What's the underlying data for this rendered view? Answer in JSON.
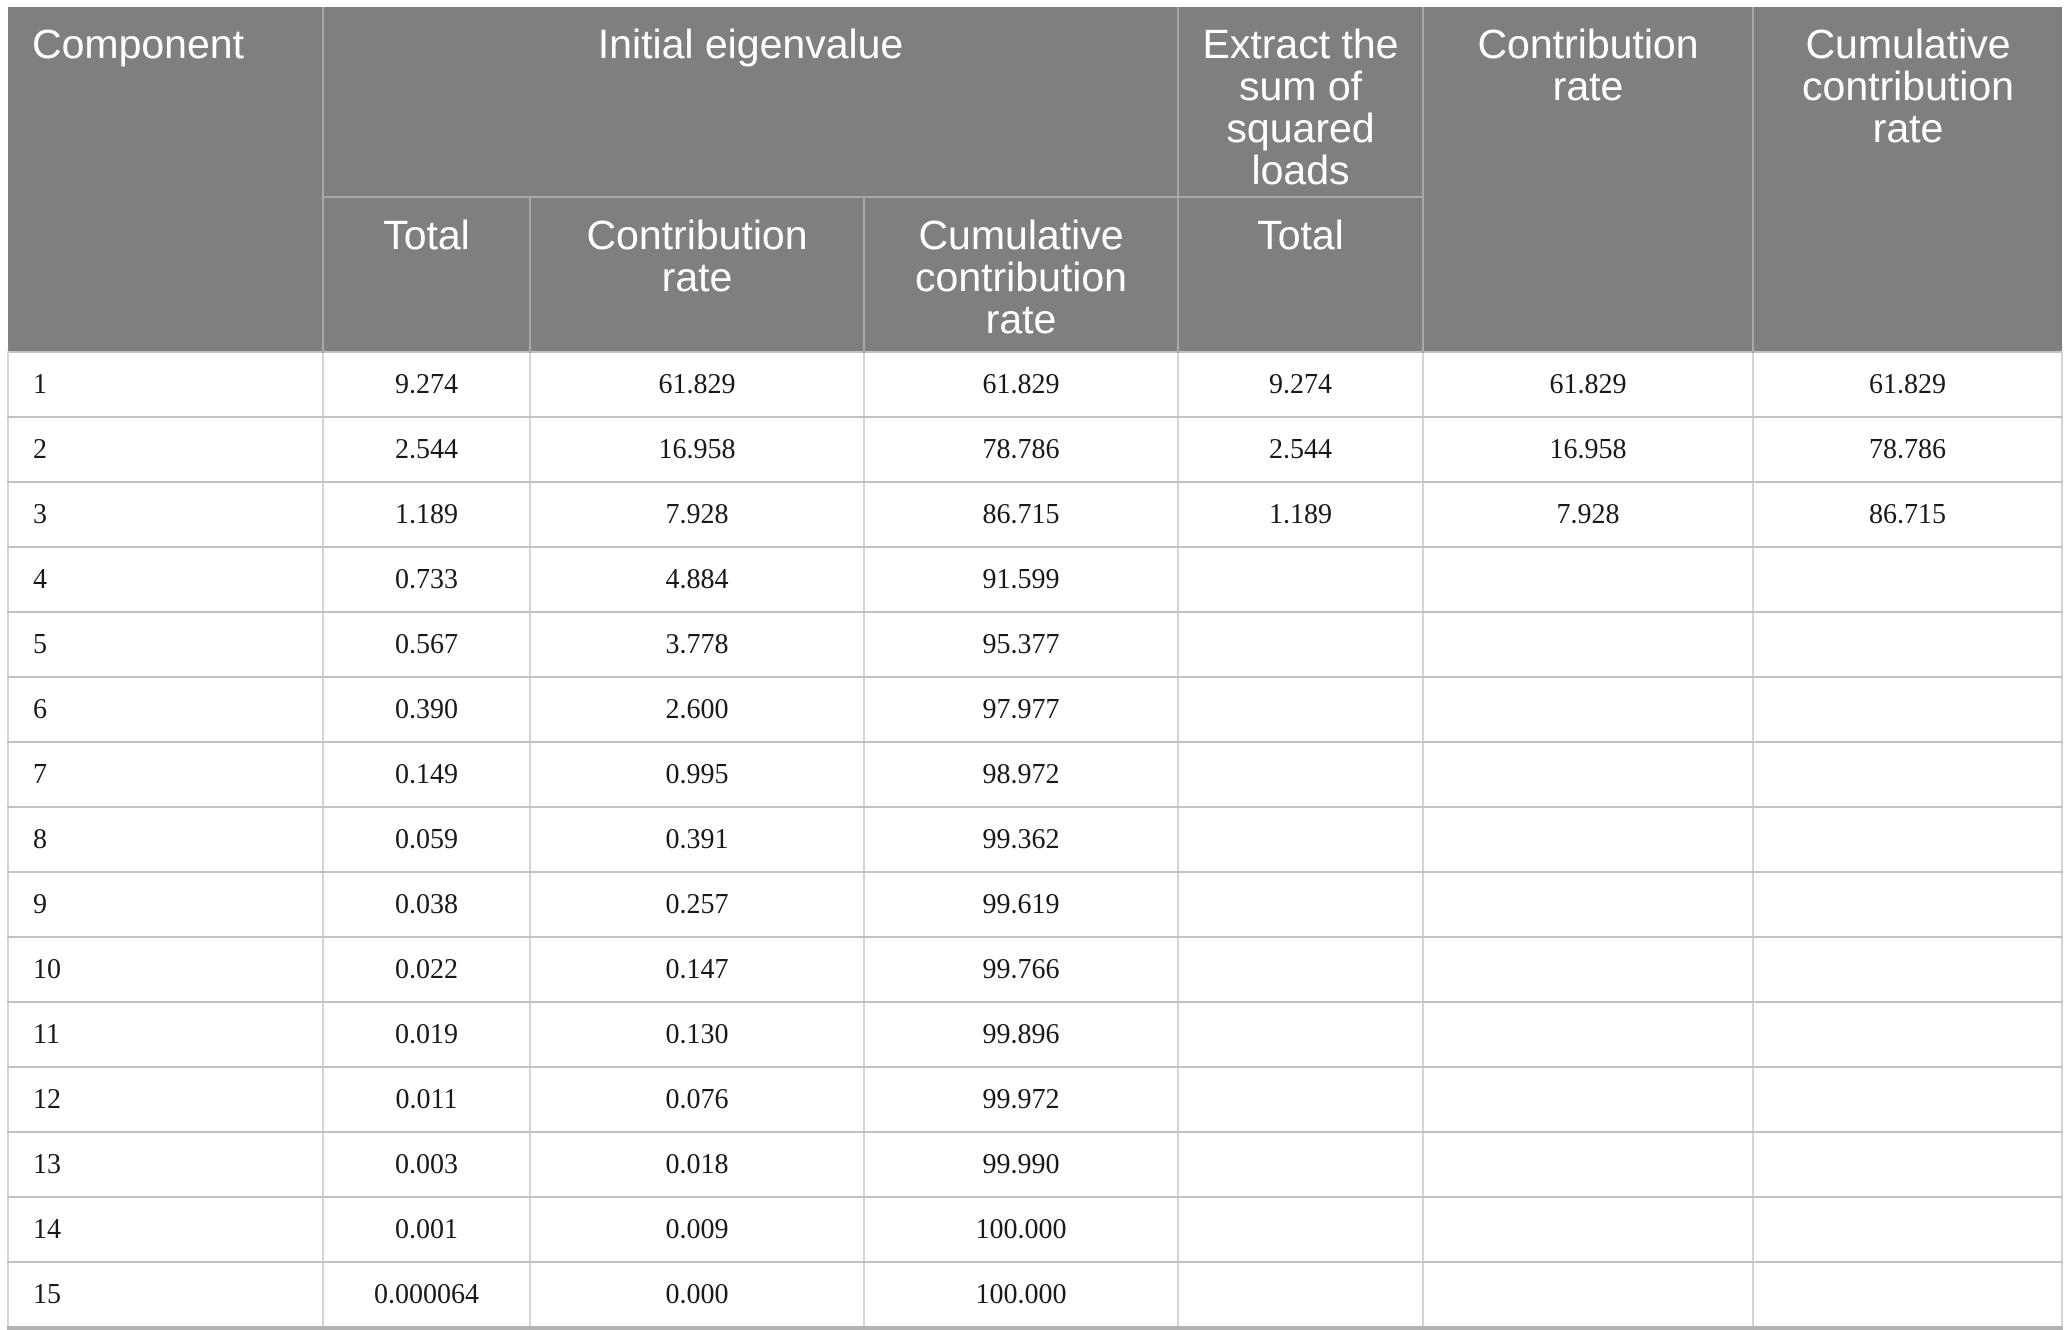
{
  "colors": {
    "header_bg": "#7f7f7f",
    "header_text": "#ffffff",
    "header_divider": "#a8a8a8",
    "cell_border_v": "#d4d4d4",
    "cell_border_h": "#c2c2c2",
    "table_bottom": "#b2b2b2",
    "data_text": "#191919",
    "page_bg": "#ffffff"
  },
  "table": {
    "header": {
      "component": "Component",
      "initial_eigenvalue_group": "Initial eigenvalue",
      "extract_group": "Extract the sum of squared loads",
      "contribution_rate": "Contribution rate",
      "cumulative_contribution_rate": "Cumulative contribution rate",
      "sub_total": "Total",
      "sub_contribution_rate": "Contribution rate",
      "sub_cumulative_contribution_rate": "Cumulative contribution rate",
      "sub_extract_total": "Total"
    },
    "rows": [
      [
        "1",
        "9.274",
        "61.829",
        "61.829",
        "9.274",
        "61.829",
        "61.829"
      ],
      [
        "2",
        "2.544",
        "16.958",
        "78.786",
        "2.544",
        "16.958",
        "78.786"
      ],
      [
        "3",
        "1.189",
        "7.928",
        "86.715",
        "1.189",
        "7.928",
        "86.715"
      ],
      [
        "4",
        "0.733",
        "4.884",
        "91.599",
        "",
        "",
        ""
      ],
      [
        "5",
        "0.567",
        "3.778",
        "95.377",
        "",
        "",
        ""
      ],
      [
        "6",
        "0.390",
        "2.600",
        "97.977",
        "",
        "",
        ""
      ],
      [
        "7",
        "0.149",
        "0.995",
        "98.972",
        "",
        "",
        ""
      ],
      [
        "8",
        "0.059",
        "0.391",
        "99.362",
        "",
        "",
        ""
      ],
      [
        "9",
        "0.038",
        "0.257",
        "99.619",
        "",
        "",
        ""
      ],
      [
        "10",
        "0.022",
        "0.147",
        "99.766",
        "",
        "",
        ""
      ],
      [
        "11",
        "0.019",
        "0.130",
        "99.896",
        "",
        "",
        ""
      ],
      [
        "12",
        "0.011",
        "0.076",
        "99.972",
        "",
        "",
        ""
      ],
      [
        "13",
        "0.003",
        "0.018",
        "99.990",
        "",
        "",
        ""
      ],
      [
        "14",
        "0.001",
        "0.009",
        "100.000",
        "",
        "",
        ""
      ],
      [
        "15",
        "0.000064",
        "0.000",
        "100.000",
        "",
        "",
        ""
      ]
    ]
  }
}
